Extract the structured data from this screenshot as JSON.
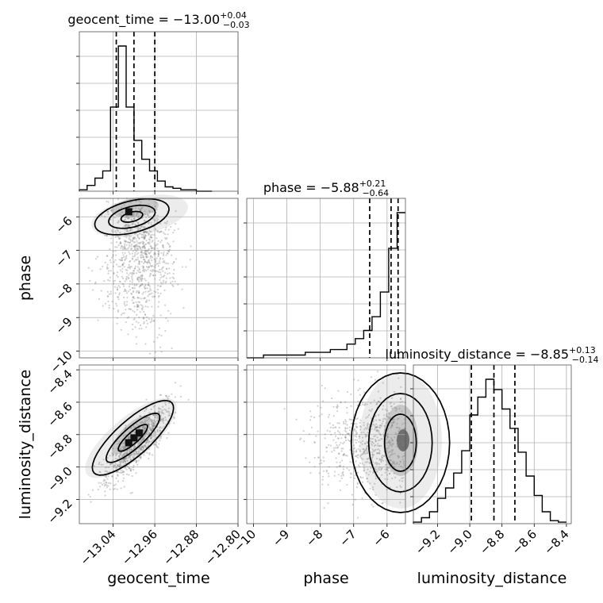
{
  "chart_data": {
    "type": "corner",
    "parameters": [
      "geocent_time",
      "phase",
      "luminosity_distance"
    ],
    "axis_labels": {
      "geocent_time": "geocent_time",
      "phase": "phase",
      "luminosity_distance": "luminosity_distance"
    },
    "ranges": {
      "geocent_time": [
        -13.105,
        -12.8
      ],
      "phase": [
        -10.2,
        -5.45
      ],
      "luminosity_distance": [
        -9.35,
        -8.37
      ]
    },
    "ticks": {
      "geocent_time": {
        "values": [
          -13.04,
          -12.96,
          -12.88,
          -12.8
        ],
        "labels": [
          "−13.04",
          "−12.96",
          "−12.88",
          "−12.80"
        ]
      },
      "phase": {
        "values": [
          -10,
          -9,
          -8,
          -7,
          -6
        ],
        "labels": [
          "−10",
          "−9",
          "−8",
          "−7",
          "−6"
        ]
      },
      "luminosity_distance": {
        "values": [
          -9.2,
          -9.0,
          -8.8,
          -8.6,
          -8.4
        ],
        "labels": [
          "−9.2",
          "−9.0",
          "−8.8",
          "−8.6",
          "−8.4"
        ]
      }
    },
    "titles": [
      {
        "param": "geocent_time",
        "name": "geocent_time",
        "median": "−13.00",
        "plus": "+0.04",
        "minus": "−0.03"
      },
      {
        "param": "phase",
        "name": "phase",
        "median": "−5.88",
        "plus": "+0.21",
        "minus": "−0.64"
      },
      {
        "param": "luminosity_distance",
        "name": "luminosity_distance",
        "median": "−8.85",
        "plus": "+0.13",
        "minus": "−0.14"
      }
    ],
    "histograms": {
      "geocent_time": {
        "bin_edges": [
          -13.105,
          -13.09,
          -13.075,
          -13.06,
          -13.045,
          -13.03,
          -13.015,
          -13.0,
          -12.985,
          -12.97,
          -12.955,
          -12.94,
          -12.925,
          -12.91,
          -12.895,
          -12.88,
          -12.865,
          -12.85
        ],
        "counts": [
          1,
          4,
          9,
          14,
          58,
          100,
          58,
          35,
          22,
          14,
          7,
          3,
          2,
          1,
          1,
          0,
          0
        ],
        "quantiles": [
          -13.034,
          -13.0,
          -12.96
        ]
      },
      "phase": {
        "bin_edges": [
          -10.2,
          -9.95,
          -9.7,
          -9.45,
          -9.2,
          -8.95,
          -8.7,
          -8.45,
          -8.2,
          -7.95,
          -7.7,
          -7.45,
          -7.2,
          -6.95,
          -6.7,
          -6.45,
          -6.2,
          -5.95,
          -5.7,
          -5.45
        ],
        "counts": [
          0,
          0,
          1,
          1,
          1,
          1,
          1,
          2,
          2,
          2,
          3,
          3,
          5,
          7,
          10,
          15,
          24,
          40,
          53
        ],
        "quantiles": [
          -6.52,
          -5.88,
          -5.67
        ]
      },
      "luminosity_distance": {
        "bin_edges": [
          -9.35,
          -9.3,
          -9.25,
          -9.2,
          -9.15,
          -9.1,
          -9.05,
          -9.0,
          -8.95,
          -8.9,
          -8.85,
          -8.8,
          -8.75,
          -8.7,
          -8.65,
          -8.6,
          -8.55,
          -8.5,
          -8.45,
          -8.4
        ],
        "counts": [
          1,
          4,
          8,
          17,
          24,
          34,
          49,
          73,
          85,
          97,
          90,
          77,
          64,
          48,
          32,
          19,
          8,
          2,
          1
        ],
        "quantiles": [
          -8.99,
          -8.85,
          -8.72
        ]
      }
    },
    "density_peaks": {
      "geocent_time_phase": {
        "x": -13.01,
        "y": -5.85
      },
      "geocent_time_luminosity_distance": {
        "x": -13.01,
        "y": -8.85
      },
      "phase_luminosity_distance": {
        "x": -5.6,
        "y": -8.85
      }
    },
    "grid": true
  }
}
